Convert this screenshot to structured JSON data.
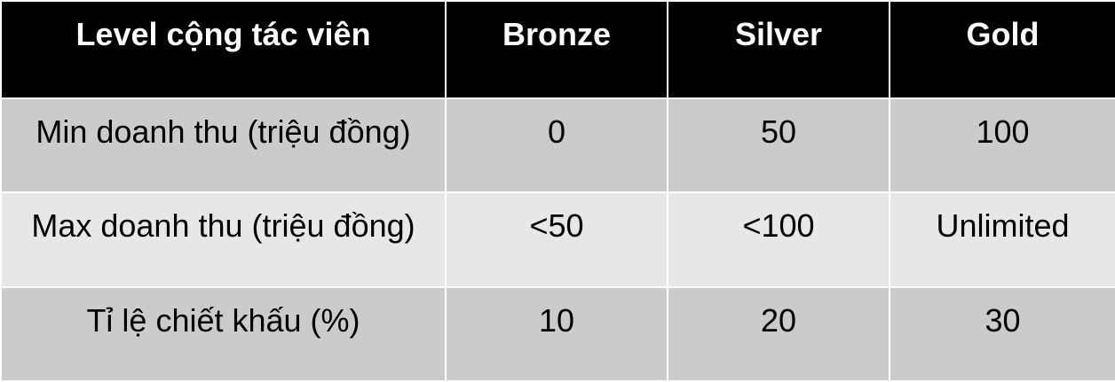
{
  "table": {
    "headers": [
      "Level cộng tác viên",
      "Bronze",
      "Silver",
      "Gold"
    ],
    "rows": [
      [
        "Min doanh thu (triệu đồng)",
        "0",
        "50",
        "100"
      ],
      [
        "Max doanh thu (triệu đồng)",
        "<50",
        "<100",
        "Unlimited"
      ],
      [
        "Tỉ lệ chiết khấu (%)",
        "10",
        "20",
        "30"
      ]
    ]
  },
  "colors": {
    "header_bg": "#000000",
    "header_text": "#ffffff",
    "row_dark_bg": "#cbcbcb",
    "row_light_bg": "#e7e7e7",
    "border": "#ffffff"
  }
}
